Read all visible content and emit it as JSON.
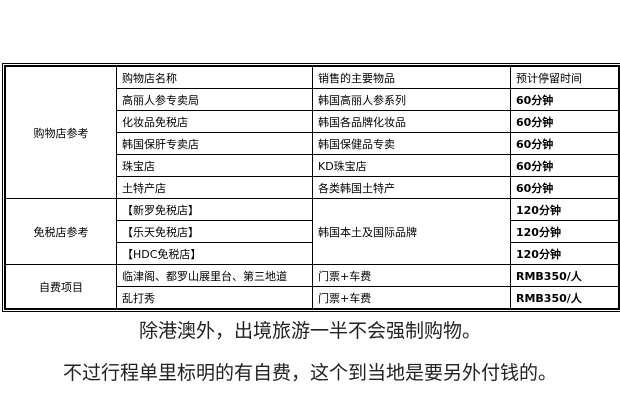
{
  "table": {
    "headers": [
      "购物店名称",
      "销售的主要物品",
      "预计停留时间"
    ],
    "groups": [
      {
        "category": "购物店参考",
        "rows": [
          {
            "name": "高丽人参专卖局",
            "goods": "韩国高丽人参系列",
            "time": "60分钟"
          },
          {
            "name": "化妆品免税店",
            "goods": "韩国各品牌化妆品",
            "time": "60分钟"
          },
          {
            "name": "韩国保肝专卖店",
            "goods": "韩国保健品专卖",
            "time": "60分钟"
          },
          {
            "name": "珠宝店",
            "goods": "KD珠宝店",
            "time": "60分钟"
          },
          {
            "name": "土特产店",
            "goods": "各类韩国土特产",
            "time": "60分钟"
          }
        ]
      },
      {
        "category": "免税店参考",
        "goods": "韩国本土及国际品牌",
        "rows": [
          {
            "name": "【新罗免税店】",
            "time": "120分钟"
          },
          {
            "name": "【乐天免税店】",
            "time": "120分钟"
          },
          {
            "name": "【HDC免税店】",
            "time": "120分钟"
          }
        ]
      },
      {
        "category": "自费项目",
        "rows": [
          {
            "name": "临津阁、都罗山展里台、第三地道",
            "goods": "门票+车费",
            "time": "RMB350/人"
          },
          {
            "name": "乱打秀",
            "goods": "门票+车费",
            "time": "RMB350/人"
          }
        ]
      }
    ]
  },
  "captions": [
    "除港澳外，出境旅游一半不会强制购物。",
    "不过行程单里标明的有自费，这个到当地是要另外付钱的。"
  ]
}
